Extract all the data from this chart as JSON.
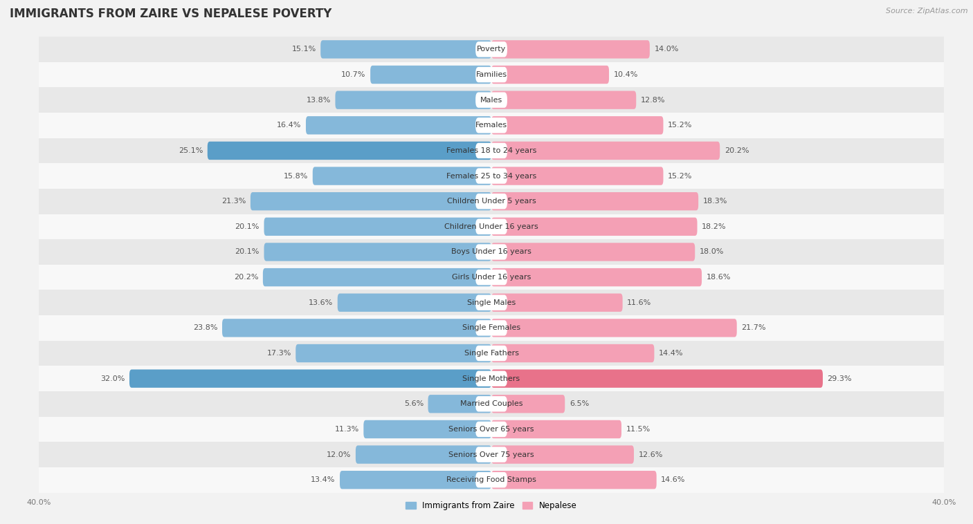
{
  "title": "IMMIGRANTS FROM ZAIRE VS NEPALESE POVERTY",
  "source": "Source: ZipAtlas.com",
  "categories": [
    "Poverty",
    "Families",
    "Males",
    "Females",
    "Females 18 to 24 years",
    "Females 25 to 34 years",
    "Children Under 5 years",
    "Children Under 16 years",
    "Boys Under 16 years",
    "Girls Under 16 years",
    "Single Males",
    "Single Females",
    "Single Fathers",
    "Single Mothers",
    "Married Couples",
    "Seniors Over 65 years",
    "Seniors Over 75 years",
    "Receiving Food Stamps"
  ],
  "zaire_values": [
    15.1,
    10.7,
    13.8,
    16.4,
    25.1,
    15.8,
    21.3,
    20.1,
    20.1,
    20.2,
    13.6,
    23.8,
    17.3,
    32.0,
    5.6,
    11.3,
    12.0,
    13.4
  ],
  "nepalese_values": [
    14.0,
    10.4,
    12.8,
    15.2,
    20.2,
    15.2,
    18.3,
    18.2,
    18.0,
    18.6,
    11.6,
    21.7,
    14.4,
    29.3,
    6.5,
    11.5,
    12.6,
    14.6
  ],
  "zaire_color": "#85b8da",
  "nepalese_color": "#f4a0b5",
  "highlight_zaire_indices": [
    4,
    13
  ],
  "highlight_nepalese_indices": [
    13
  ],
  "highlight_zaire_color": "#5a9ec8",
  "highlight_nepalese_color": "#e8728a",
  "bg_color": "#f2f2f2",
  "row_even_color": "#e8e8e8",
  "row_odd_color": "#f8f8f8",
  "axis_limit": 40.0,
  "bar_height": 0.72,
  "legend_zaire": "Immigrants from Zaire",
  "legend_nepalese": "Nepalese",
  "title_fontsize": 12,
  "label_fontsize": 8,
  "value_fontsize": 8,
  "source_fontsize": 8
}
